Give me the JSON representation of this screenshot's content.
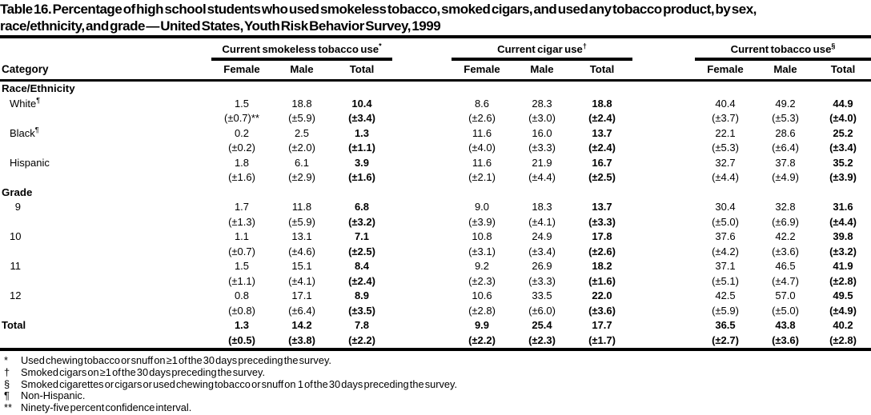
{
  "title": {
    "full": "Table 16. Percentage of high school students who used smokeless tobacco, smoked cigars, and used any tobacco product, by sex, race/ethnicity, and grade — United States, Youth Risk Behavior Survey, 1999",
    "lines": [
      "Table 16. Percentage of high school students who used smokeless tobacco, smoked cigars, and used any tobacco product, by sex,",
      "race/ethnicity, and grade — United States, Youth Risk Behavior Survey, 1999"
    ]
  },
  "table": {
    "category_header": "Category",
    "groups": [
      {
        "label": "Current smokeless tobacco use",
        "sup": "*"
      },
      {
        "label": "Current cigar use",
        "sup": "†"
      },
      {
        "label": "Current tobacco use",
        "sup": "§"
      }
    ],
    "sub_headers": [
      "Female",
      "Male",
      "Total"
    ],
    "sections": [
      {
        "header": "Race/Ethnicity",
        "rows": [
          {
            "label": "White",
            "sup": "¶",
            "values": [
              "1.5",
              "18.8",
              "10.4",
              "8.6",
              "28.3",
              "18.8",
              "40.4",
              "49.2",
              "44.9"
            ],
            "ci": [
              "(±0.7)**",
              "(±5.9)",
              "(±3.4)",
              "(±2.6)",
              "(±3.0)",
              "(±2.4)",
              "(±3.7)",
              "(±5.3)",
              "(±4.0)"
            ]
          },
          {
            "label": "Black",
            "sup": "¶",
            "values": [
              "0.2",
              "2.5",
              "1.3",
              "11.6",
              "16.0",
              "13.7",
              "22.1",
              "28.6",
              "25.2"
            ],
            "ci": [
              "(±0.2)",
              "(±2.0)",
              "(±1.1)",
              "(±4.0)",
              "(±3.3)",
              "(±2.4)",
              "(±5.3)",
              "(±6.4)",
              "(±3.4)"
            ]
          },
          {
            "label": "Hispanic",
            "sup": "",
            "values": [
              "1.8",
              "6.1",
              "3.9",
              "11.6",
              "21.9",
              "16.7",
              "32.7",
              "37.8",
              "35.2"
            ],
            "ci": [
              "(±1.6)",
              "(±2.9)",
              "(±1.6)",
              "(±2.1)",
              "(±4.4)",
              "(±2.5)",
              "(±4.4)",
              "(±4.9)",
              "(±3.9)"
            ]
          }
        ]
      },
      {
        "header": "Grade",
        "rows": [
          {
            "label": "9",
            "sup": "",
            "values": [
              "1.7",
              "11.8",
              "6.8",
              "9.0",
              "18.3",
              "13.7",
              "30.4",
              "32.8",
              "31.6"
            ],
            "ci": [
              "(±1.3)",
              "(±5.9)",
              "(±3.2)",
              "(±3.9)",
              "(±4.1)",
              "(±3.3)",
              "(±5.0)",
              "(±6.9)",
              "(±4.4)"
            ]
          },
          {
            "label": "10",
            "sup": "",
            "values": [
              "1.1",
              "13.1",
              "7.1",
              "10.8",
              "24.9",
              "17.8",
              "37.6",
              "42.2",
              "39.8"
            ],
            "ci": [
              "(±0.7)",
              "(±4.6)",
              "(±2.5)",
              "(±3.1)",
              "(±3.4)",
              "(±2.6)",
              "(±4.2)",
              "(±3.6)",
              "(±3.2)"
            ]
          },
          {
            "label": "11",
            "sup": "",
            "values": [
              "1.5",
              "15.1",
              "8.4",
              "9.2",
              "26.9",
              "18.2",
              "37.1",
              "46.5",
              "41.9"
            ],
            "ci": [
              "(±1.1)",
              "(±4.1)",
              "(±2.4)",
              "(±2.3)",
              "(±3.3)",
              "(±1.6)",
              "(±5.1)",
              "(±4.7)",
              "(±2.8)"
            ]
          },
          {
            "label": "12",
            "sup": "",
            "values": [
              "0.8",
              "17.1",
              "8.9",
              "10.6",
              "33.5",
              "22.0",
              "42.5",
              "57.0",
              "49.5"
            ],
            "ci": [
              "(±0.8)",
              "(±6.4)",
              "(±3.5)",
              "(±2.8)",
              "(±6.0)",
              "(±3.6)",
              "(±5.9)",
              "(±5.0)",
              "(±4.9)"
            ]
          }
        ]
      }
    ],
    "total_row": {
      "label": "Total",
      "values": [
        "1.3",
        "14.2",
        "7.8",
        "9.9",
        "25.4",
        "17.7",
        "36.5",
        "43.8",
        "40.2"
      ],
      "ci": [
        "(±0.5)",
        "(±3.8)",
        "(±2.2)",
        "(±2.2)",
        "(±2.3)",
        "(±1.7)",
        "(±2.7)",
        "(±3.6)",
        "(±2.8)"
      ]
    }
  },
  "footnotes": [
    {
      "symbol": "*",
      "text": "Used chewing tobacco or snuff on ≥1 of the 30 days preceding the survey."
    },
    {
      "symbol": "†",
      "text": "Smoked cigars on ≥1 of the 30 days preceding the survey."
    },
    {
      "symbol": "§",
      "text": "Smoked cigarettes or cigars or used chewing tobacco or snuff on  1 of the 30 days preceding the survey."
    },
    {
      "symbol": "¶",
      "text": "Non-Hispanic."
    },
    {
      "symbol": "**",
      "text": "Ninety-five percent confidence interval."
    }
  ]
}
